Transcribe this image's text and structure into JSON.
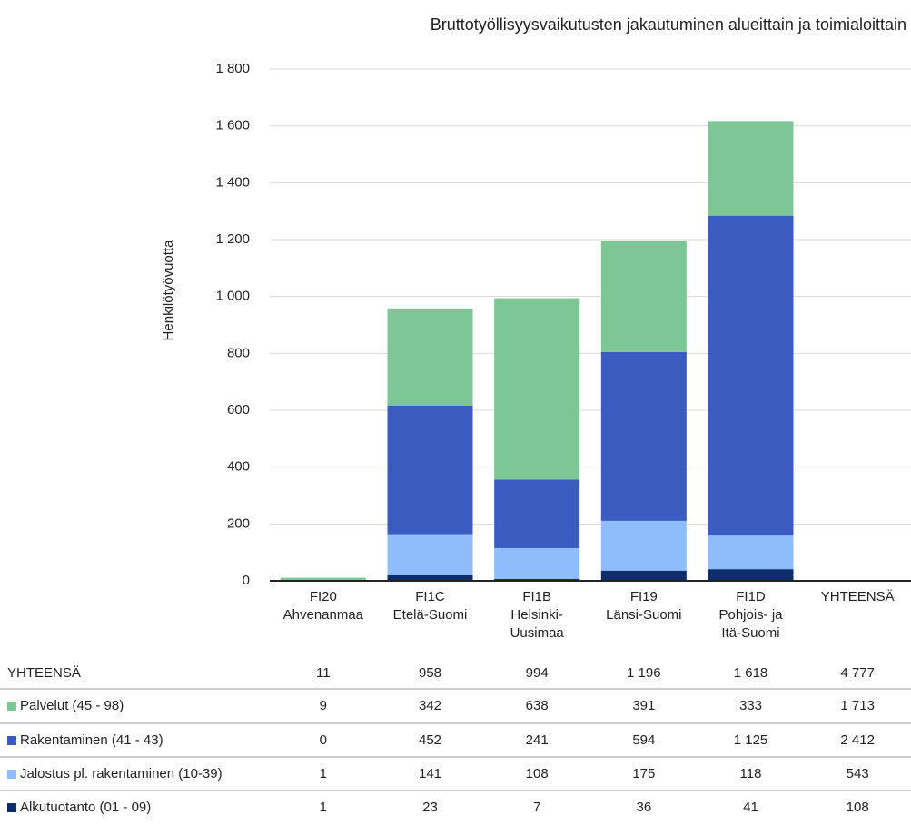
{
  "chart_data": {
    "type": "bar",
    "stacked": true,
    "title": "Bruttotyöllisyysvaikutusten jakautuminen alueittain ja toimialoittain",
    "y_label": "Henkilötyövuotta",
    "categories": [
      [
        "FI20",
        "Ahvenanmaa"
      ],
      [
        "FI1C",
        "Etelä-Suomi"
      ],
      [
        "FI1B",
        "Helsinki-",
        "Uusimaa"
      ],
      [
        "FI19",
        "Länsi-Suomi"
      ],
      [
        "FI1D",
        "Pohjois- ja",
        "Itä-Suomi"
      ]
    ],
    "total_column": "YHTEENSÄ",
    "total_row": {
      "name": "YHTEENSÄ",
      "values": [
        11,
        958,
        994,
        1196,
        1618
      ],
      "value_labels": [
        "11",
        "958",
        "994",
        "1 196",
        "1 618"
      ],
      "total": 4777,
      "total_label": "4 777"
    },
    "series": [
      {
        "name": "Palvelut (45 - 98)",
        "color": "#7dc695",
        "values": [
          9,
          342,
          638,
          391,
          333
        ],
        "value_labels": [
          "9",
          "342",
          "638",
          "391",
          "333"
        ],
        "total": 1713,
        "total_label": "1 713"
      },
      {
        "name": "Rakentaminen (41 - 43)",
        "color": "#3a5bbf",
        "values": [
          0,
          452,
          241,
          594,
          1125
        ],
        "value_labels": [
          "0",
          "452",
          "241",
          "594",
          "1 125"
        ],
        "total": 2412,
        "total_label": "2 412"
      },
      {
        "name": "Jalostus pl. rakentaminen (10-39)",
        "color": "#8fbcfb",
        "values": [
          1,
          141,
          108,
          175,
          118
        ],
        "value_labels": [
          "1",
          "141",
          "108",
          "175",
          "118"
        ],
        "total": 543,
        "total_label": "543"
      },
      {
        "name": "Alkutuotanto (01 - 09)",
        "color": "#0d2d6b",
        "values": [
          1,
          23,
          7,
          36,
          41
        ],
        "value_labels": [
          "1",
          "23",
          "7",
          "36",
          "41"
        ],
        "total": 108,
        "total_label": "108"
      }
    ],
    "ylim": [
      0,
      1800
    ],
    "yticks": [
      0,
      200,
      400,
      600,
      800,
      {
        "value": 1000,
        "label": "1 000"
      },
      {
        "value": 1200,
        "label": "1 200"
      },
      {
        "value": 1400,
        "label": "1 400"
      },
      {
        "value": 1600,
        "label": "1 600"
      },
      {
        "value": 1800,
        "label": "1 800"
      }
    ],
    "grid": true
  }
}
